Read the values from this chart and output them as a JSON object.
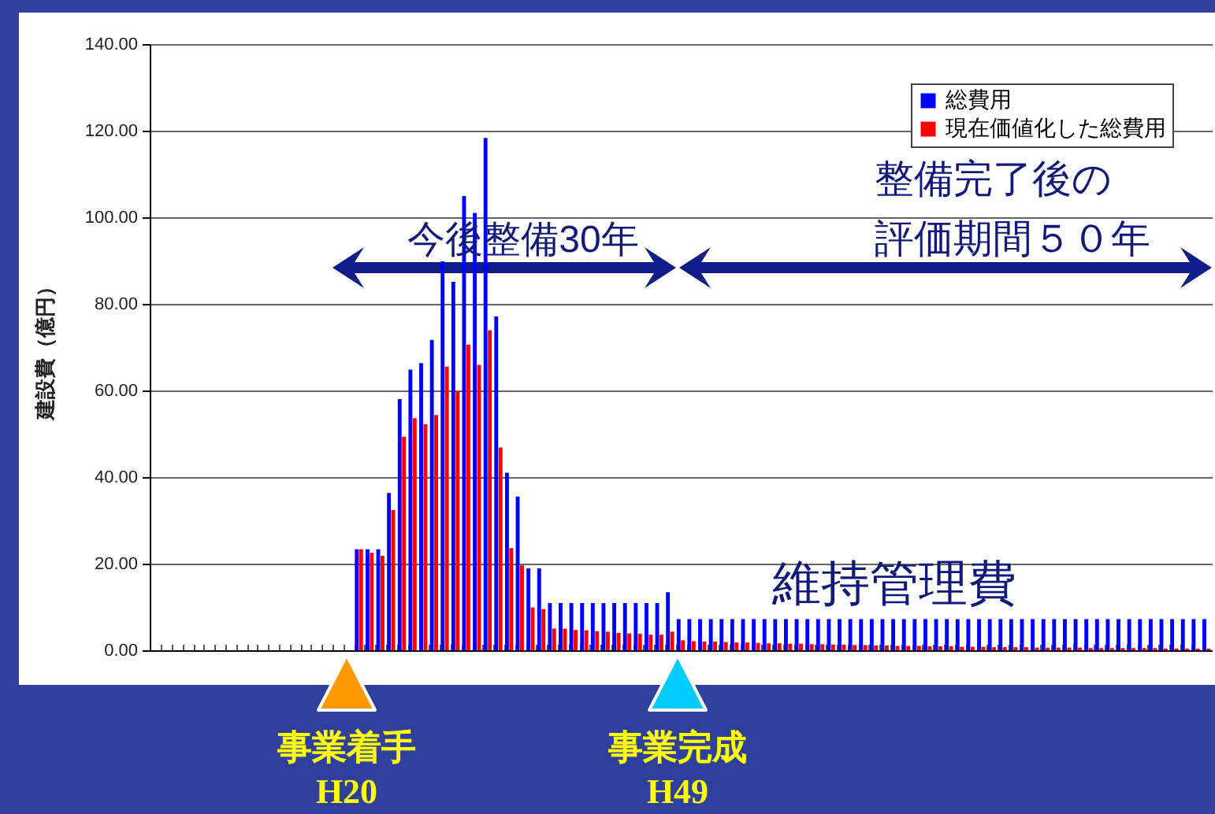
{
  "chart_data": {
    "type": "bar",
    "ylabel": "建設費（億円）",
    "categories": [
      null,
      null,
      null,
      null,
      null,
      null,
      null,
      null,
      null,
      null,
      null,
      null,
      null,
      null,
      null,
      null,
      null,
      null,
      null,
      null,
      null,
      null,
      null,
      null,
      null,
      null,
      null,
      null,
      null,
      null,
      null,
      null,
      null,
      null,
      null,
      null,
      null,
      null,
      null,
      null,
      null,
      null,
      null,
      null,
      null,
      null,
      null,
      null,
      null,
      null,
      null,
      null,
      null,
      null,
      null,
      null,
      null,
      null,
      null,
      null,
      null,
      null,
      null,
      null,
      null,
      null,
      null,
      null,
      null,
      null,
      null,
      null,
      null,
      null,
      null,
      null,
      null,
      null,
      null,
      null,
      null,
      null,
      null,
      null,
      null,
      null,
      null,
      null,
      null,
      null,
      null,
      null,
      null,
      null,
      null,
      null,
      null,
      null,
      null
    ],
    "series": [
      {
        "name": "総費用",
        "color": "#0000ff",
        "values": [
          null,
          null,
          null,
          null,
          null,
          null,
          null,
          null,
          null,
          null,
          null,
          null,
          null,
          null,
          null,
          null,
          null,
          null,
          null,
          23.3,
          23.3,
          23.3,
          36.3,
          58.0,
          64.8,
          66.3,
          71.7,
          89.8,
          85.1,
          104.9,
          101.0,
          118.3,
          77.1,
          41.0,
          35.5,
          18.9,
          18.9,
          10.9,
          10.9,
          10.9,
          10.9,
          10.9,
          10.9,
          10.9,
          10.9,
          10.9,
          10.9,
          10.9,
          13.4,
          7.2,
          7.2,
          7.2,
          7.2,
          7.2,
          7.2,
          7.2,
          7.2,
          7.2,
          7.2,
          7.2,
          7.2,
          7.2,
          7.2,
          7.2,
          7.2,
          7.2,
          7.2,
          7.2,
          7.2,
          7.2,
          7.2,
          7.2,
          7.2,
          7.2,
          7.2,
          7.2,
          7.2,
          7.2,
          7.2,
          7.2,
          7.2,
          7.2,
          7.2,
          7.2,
          7.2,
          7.2,
          7.2,
          7.2,
          7.2,
          7.2,
          7.2,
          7.2,
          7.2,
          7.2,
          7.2,
          7.2,
          7.2,
          7.2,
          7.2
        ]
      },
      {
        "name": "現在価値化した総費用",
        "color": "#ff0000",
        "values": [
          null,
          null,
          null,
          null,
          null,
          null,
          null,
          null,
          null,
          null,
          null,
          null,
          null,
          null,
          null,
          null,
          null,
          null,
          null,
          23.3,
          22.5,
          21.8,
          32.4,
          49.3,
          53.6,
          52.2,
          54.3,
          65.5,
          59.8,
          70.6,
          65.9,
          73.9,
          46.8,
          23.6,
          19.6,
          9.9,
          9.5,
          5.0,
          5.0,
          4.7,
          4.6,
          4.4,
          4.3,
          4.0,
          3.9,
          3.8,
          3.6,
          3.6,
          4.3,
          2.3,
          2.1,
          2.0,
          2.0,
          1.9,
          1.8,
          1.8,
          1.7,
          1.6,
          1.6,
          1.5,
          1.5,
          1.4,
          1.4,
          1.3,
          1.3,
          1.2,
          1.2,
          1.1,
          1.1,
          1.0,
          1.0,
          1.0,
          0.9,
          0.9,
          0.9,
          0.8,
          0.8,
          0.8,
          0.7,
          0.7,
          0.7,
          0.7,
          0.6,
          0.6,
          0.6,
          0.6,
          0.6,
          0.5,
          0.5,
          0.5,
          0.5,
          0.5,
          0.5,
          0.5,
          0.4,
          0.4,
          0.4,
          0.4,
          0.4
        ]
      }
    ],
    "ylim": [
      0,
      140
    ],
    "yticks": [
      {
        "value": 0,
        "label": "0.00"
      },
      {
        "value": 20,
        "label": "20.00"
      },
      {
        "value": 40,
        "label": "40.00"
      },
      {
        "value": 60,
        "label": "60.00"
      },
      {
        "value": 80,
        "label": "80.00"
      },
      {
        "value": 100,
        "label": "100.00"
      },
      {
        "value": 120,
        "label": "120.00"
      },
      {
        "value": 140,
        "label": "140.00"
      }
    ],
    "grid": "y",
    "legend": "top right",
    "tick_labels": "y",
    "annotations": [
      "今後整備30年",
      "整備完了後の",
      "評価期間５０年",
      "維持管理費",
      "事業着手",
      "H20",
      "事業完成",
      "H49"
    ]
  }
}
